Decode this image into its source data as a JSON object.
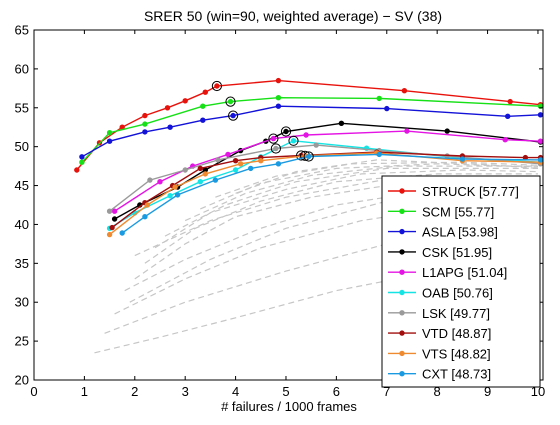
{
  "chart_data": {
    "type": "line",
    "title": "SRER 50 (win=90, weighted average) − SV (38)",
    "xlabel": "# failures / 1000 frames",
    "ylabel": "",
    "xlim": [
      0,
      10.1
    ],
    "ylim": [
      20,
      65
    ],
    "xticks": [
      0,
      1,
      2,
      3,
      4,
      5,
      6,
      7,
      8,
      9,
      10
    ],
    "yticks": [
      20,
      25,
      30,
      35,
      40,
      45,
      50,
      55,
      60,
      65
    ],
    "grid": false,
    "legend_position": "bottom-right",
    "series": [
      {
        "name": "STRUCK",
        "score": "[57.77]",
        "color": "#e8120c",
        "points": [
          [
            0.85,
            47.0
          ],
          [
            1.3,
            50.5
          ],
          [
            1.75,
            52.5
          ],
          [
            2.2,
            54.0
          ],
          [
            2.65,
            55.0
          ],
          [
            3.0,
            55.9
          ],
          [
            3.4,
            57.0
          ],
          [
            3.63,
            57.8
          ],
          [
            4.85,
            58.5
          ],
          [
            7.35,
            57.2
          ],
          [
            9.45,
            55.8
          ],
          [
            10.05,
            55.4
          ]
        ],
        "marked": [
          3.63,
          57.8
        ]
      },
      {
        "name": "SCM",
        "score": "[55.77]",
        "color": "#16e016",
        "points": [
          [
            0.95,
            48.0
          ],
          [
            1.5,
            51.8
          ],
          [
            2.2,
            52.9
          ],
          [
            3.35,
            55.2
          ],
          [
            3.9,
            55.8
          ],
          [
            4.85,
            56.3
          ],
          [
            6.85,
            56.2
          ],
          [
            10.05,
            55.2
          ]
        ],
        "marked": [
          3.9,
          55.8
        ]
      },
      {
        "name": "ASLA",
        "score": "[53.98]",
        "color": "#1212d8",
        "points": [
          [
            0.95,
            48.7
          ],
          [
            1.5,
            50.7
          ],
          [
            2.2,
            51.9
          ],
          [
            2.7,
            52.5
          ],
          [
            3.35,
            53.4
          ],
          [
            3.95,
            54.0
          ],
          [
            4.85,
            55.2
          ],
          [
            7.0,
            54.9
          ],
          [
            9.4,
            53.9
          ],
          [
            10.05,
            54.1
          ]
        ],
        "marked": [
          3.95,
          54.0
        ]
      },
      {
        "name": "CSK",
        "score": "[51.95]",
        "color": "#000000",
        "points": [
          [
            1.6,
            40.7
          ],
          [
            2.1,
            42.5
          ],
          [
            2.85,
            44.8
          ],
          [
            3.4,
            47.0
          ],
          [
            4.1,
            49.5
          ],
          [
            4.6,
            50.7
          ],
          [
            5.0,
            51.95
          ],
          [
            6.1,
            53.0
          ],
          [
            8.2,
            52.0
          ],
          [
            10.05,
            50.6
          ]
        ],
        "marked": [
          5.0,
          51.95
        ]
      },
      {
        "name": "L1APG",
        "score": "[51.04]",
        "color": "#e414e4",
        "points": [
          [
            1.6,
            41.7
          ],
          [
            2.5,
            45.5
          ],
          [
            3.15,
            47.5
          ],
          [
            3.85,
            49.0
          ],
          [
            4.75,
            51.04
          ],
          [
            5.4,
            51.5
          ],
          [
            7.4,
            52.0
          ],
          [
            9.35,
            50.9
          ],
          [
            10.05,
            50.7
          ]
        ],
        "marked": [
          4.75,
          51.04
        ]
      },
      {
        "name": "OAB",
        "score": "[50.76]",
        "color": "#14e4e4",
        "points": [
          [
            1.5,
            39.5
          ],
          [
            2.0,
            41.5
          ],
          [
            2.7,
            43.7
          ],
          [
            3.3,
            45.5
          ],
          [
            4.0,
            47.0
          ],
          [
            4.5,
            48.7
          ],
          [
            5.15,
            50.76
          ],
          [
            6.6,
            49.8
          ],
          [
            8.5,
            48.5
          ],
          [
            10.05,
            48.0
          ]
        ],
        "marked": [
          5.15,
          50.76
        ]
      },
      {
        "name": "LSK",
        "score": "[49.77]",
        "color": "#9a9a9a",
        "points": [
          [
            1.5,
            41.7
          ],
          [
            2.3,
            45.7
          ],
          [
            3.0,
            47.0
          ],
          [
            3.65,
            48.3
          ],
          [
            4.8,
            49.77
          ],
          [
            5.6,
            50.2
          ],
          [
            6.85,
            49.5
          ],
          [
            8.2,
            48.8
          ],
          [
            10.05,
            47.8
          ]
        ],
        "marked": [
          4.8,
          49.77
        ]
      },
      {
        "name": "VTD",
        "score": "[48.87]",
        "color": "#a20e0e",
        "points": [
          [
            1.55,
            39.6
          ],
          [
            2.2,
            42.8
          ],
          [
            2.75,
            45.0
          ],
          [
            3.3,
            47.2
          ],
          [
            4.0,
            48.2
          ],
          [
            4.5,
            48.6
          ],
          [
            5.3,
            48.87
          ],
          [
            6.8,
            49.3
          ],
          [
            8.5,
            48.8
          ],
          [
            9.75,
            48.6
          ],
          [
            10.05,
            48.6
          ]
        ],
        "marked": [
          5.3,
          48.87
        ]
      },
      {
        "name": "VTS",
        "score": "[48.82]",
        "color": "#f08a30",
        "points": [
          [
            1.5,
            38.7
          ],
          [
            2.25,
            42.5
          ],
          [
            2.8,
            44.8
          ],
          [
            3.4,
            46.5
          ],
          [
            4.1,
            47.8
          ],
          [
            4.5,
            48.2
          ],
          [
            5.38,
            48.82
          ],
          [
            6.8,
            49.2
          ],
          [
            8.5,
            48.2
          ],
          [
            10.05,
            48.0
          ]
        ],
        "marked": [
          5.38,
          48.82
        ]
      },
      {
        "name": "CXT",
        "score": "[48.73]",
        "color": "#1a9ae0",
        "points": [
          [
            1.75,
            38.9
          ],
          [
            2.2,
            41.0
          ],
          [
            2.85,
            43.8
          ],
          [
            3.6,
            45.7
          ],
          [
            4.3,
            47.2
          ],
          [
            4.85,
            47.8
          ],
          [
            5.45,
            48.73
          ],
          [
            6.85,
            49.0
          ],
          [
            8.5,
            48.4
          ],
          [
            10.05,
            48.3
          ]
        ],
        "marked": [
          5.45,
          48.73
        ]
      }
    ],
    "background_series": [
      [
        [
          1.2,
          23.5
        ],
        [
          2.5,
          25.5
        ],
        [
          4.0,
          28.0
        ],
        [
          6.0,
          31.5
        ],
        [
          8.0,
          34.0
        ],
        [
          10.0,
          36.0
        ]
      ],
      [
        [
          1.4,
          26.0
        ],
        [
          3.0,
          30.0
        ],
        [
          5.0,
          34.0
        ],
        [
          7.0,
          37.5
        ],
        [
          10.0,
          40.0
        ]
      ],
      [
        [
          1.6,
          28.5
        ],
        [
          3.0,
          33.0
        ],
        [
          4.5,
          37.0
        ],
        [
          6.5,
          40.5
        ],
        [
          8.5,
          42.5
        ],
        [
          10.0,
          43.0
        ]
      ],
      [
        [
          1.8,
          31.5
        ],
        [
          3.0,
          35.5
        ],
        [
          4.5,
          39.5
        ],
        [
          6.0,
          42.5
        ],
        [
          8.0,
          44.5
        ],
        [
          10.0,
          45.0
        ]
      ],
      [
        [
          2.0,
          33.0
        ],
        [
          3.0,
          37.5
        ],
        [
          4.0,
          41.0
        ],
        [
          5.5,
          43.5
        ],
        [
          7.5,
          45.5
        ],
        [
          10.0,
          46.0
        ]
      ],
      [
        [
          2.2,
          35.0
        ],
        [
          3.2,
          39.5
        ],
        [
          4.5,
          43.0
        ],
        [
          6.0,
          45.5
        ],
        [
          8.0,
          46.5
        ],
        [
          10.0,
          46.5
        ]
      ],
      [
        [
          2.4,
          37.0
        ],
        [
          3.5,
          41.5
        ],
        [
          5.0,
          44.5
        ],
        [
          6.5,
          46.5
        ],
        [
          8.5,
          47.0
        ],
        [
          10.0,
          46.8
        ]
      ],
      [
        [
          2.6,
          38.5
        ],
        [
          3.8,
          42.5
        ],
        [
          5.2,
          45.5
        ],
        [
          7.0,
          47.2
        ],
        [
          10.0,
          47.2
        ]
      ],
      [
        [
          3.0,
          40.5
        ],
        [
          4.2,
          44.0
        ],
        [
          5.5,
          46.3
        ],
        [
          7.2,
          47.5
        ],
        [
          10.0,
          47.5
        ]
      ],
      [
        [
          3.3,
          42.0
        ],
        [
          4.5,
          45.3
        ],
        [
          6.0,
          47.2
        ],
        [
          8.0,
          47.8
        ],
        [
          10.0,
          47.4
        ]
      ],
      [
        [
          3.6,
          43.5
        ],
        [
          4.8,
          46.2
        ],
        [
          6.3,
          47.8
        ],
        [
          8.5,
          48.0
        ],
        [
          10.0,
          47.6
        ]
      ],
      [
        [
          4.0,
          44.0
        ],
        [
          5.2,
          46.8
        ],
        [
          6.8,
          48.3
        ],
        [
          9.0,
          47.7
        ],
        [
          10.0,
          47.2
        ]
      ],
      [
        [
          2.0,
          36.0
        ],
        [
          3.5,
          40.5
        ],
        [
          5.0,
          43.5
        ],
        [
          7.0,
          45.8
        ],
        [
          10.0,
          46.2
        ]
      ],
      [
        [
          1.9,
          30.0
        ],
        [
          3.5,
          35.5
        ],
        [
          5.0,
          39.5
        ],
        [
          7.0,
          43.0
        ],
        [
          10.0,
          44.5
        ]
      ]
    ],
    "background_color": "#c6c6c6"
  }
}
